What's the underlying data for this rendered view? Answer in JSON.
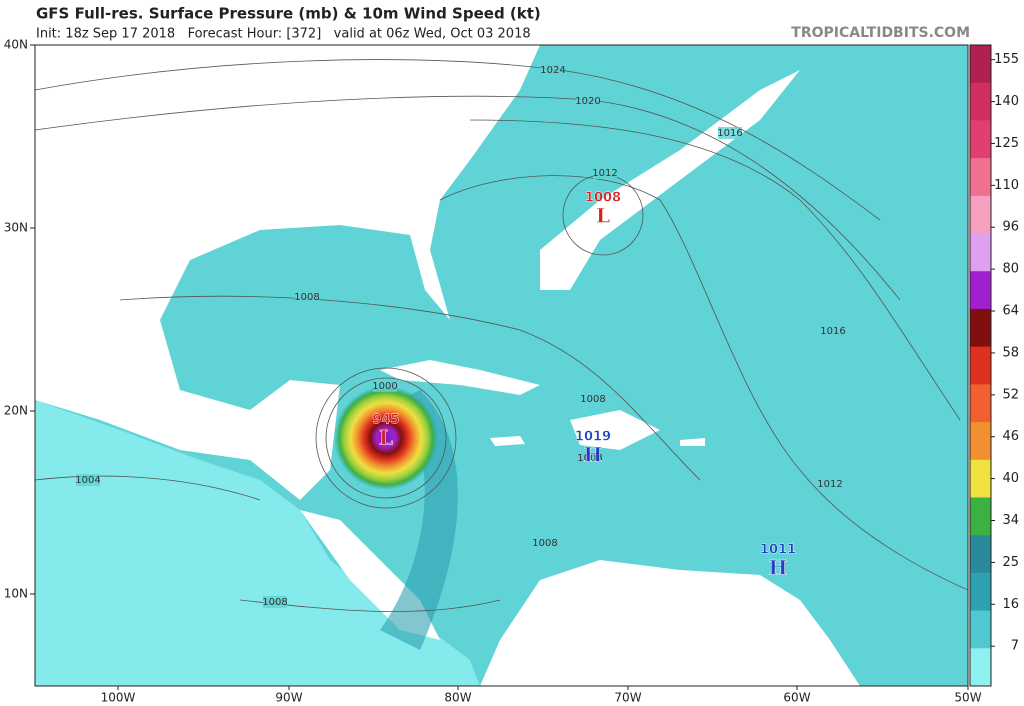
{
  "map": {
    "title": "GFS Full-res. Surface Pressure (mb) & 10m Wind Speed (kt)",
    "subtitle": "Init: 18z Sep 17 2018   Forecast Hour: [372]   valid at 06z Wed, Oct 03 2018",
    "source": "TROPICALTIDBITS.COM",
    "lat_labels": [
      "40N",
      "30N",
      "20N",
      "10N"
    ],
    "lon_labels": [
      "100W",
      "90W",
      "80W",
      "70W",
      "60W",
      "50W"
    ],
    "isobar_labels": [
      1024,
      1020,
      1016,
      1012,
      1008,
      1016,
      1008,
      1008,
      1012,
      1004,
      1008,
      1008,
      1000
    ],
    "centers": [
      {
        "symbol": "L",
        "value": 1008
      },
      {
        "symbol": "L",
        "value": 945
      },
      {
        "symbol": "H",
        "value": 1019
      },
      {
        "symbol": "H",
        "value": 1011
      }
    ],
    "colorbar": [
      155,
      140,
      125,
      110,
      96,
      80,
      64,
      58,
      52,
      46,
      40,
      34,
      25,
      16,
      7
    ]
  }
}
